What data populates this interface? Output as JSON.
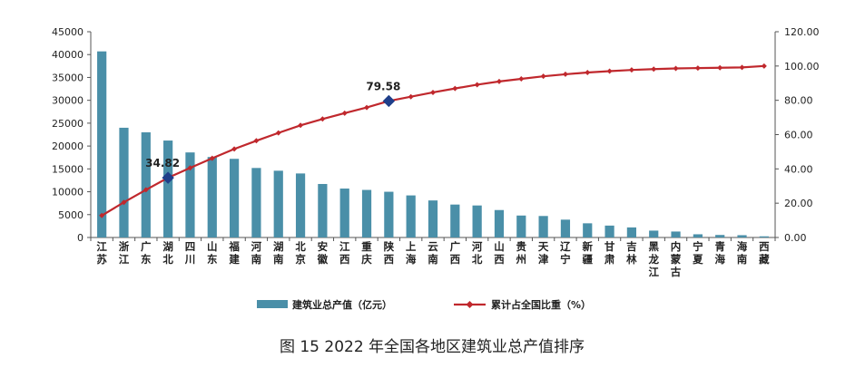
{
  "chart_data": {
    "type": "bar",
    "caption": "图 15  2022 年全国各地区建筑业总产值排序",
    "categories": [
      "江苏",
      "浙江",
      "广东",
      "湖北",
      "四川",
      "山东",
      "福建",
      "河南",
      "湖南",
      "北京",
      "安徽",
      "江西",
      "重庆",
      "陕西",
      "上海",
      "云南",
      "广西",
      "河北",
      "山西",
      "贵州",
      "天津",
      "辽宁",
      "新疆",
      "甘肃",
      "吉林",
      "黑龙江",
      "内蒙古",
      "宁夏",
      "青海",
      "海南",
      "西藏"
    ],
    "y_left": {
      "min": 0,
      "max": 45000,
      "step": 5000,
      "ticks": [
        "0",
        "5000",
        "10000",
        "15000",
        "20000",
        "25000",
        "30000",
        "35000",
        "40000",
        "45000"
      ]
    },
    "y_right": {
      "min": 0,
      "max": 120,
      "step": 20,
      "ticks": [
        "0.00",
        "20.00",
        "40.00",
        "60.00",
        "80.00",
        "100.00",
        "120.00"
      ]
    },
    "series": [
      {
        "name": "建筑业总产值（亿元）",
        "kind": "bar",
        "axis": "left",
        "color": "#4a8fa8",
        "values": [
          40700,
          24000,
          23000,
          21200,
          18600,
          17600,
          17200,
          15200,
          14600,
          14000,
          11700,
          10700,
          10400,
          10000,
          9200,
          8100,
          7200,
          7000,
          6000,
          4800,
          4700,
          3900,
          3100,
          2600,
          2200,
          1500,
          1300,
          700,
          550,
          500,
          250
        ]
      },
      {
        "name": "累计占全国比重（%）",
        "kind": "line",
        "axis": "right",
        "color": "#c0282d",
        "values": [
          12.8,
          20.5,
          27.8,
          34.82,
          40.6,
          46.2,
          51.6,
          56.4,
          61.0,
          65.4,
          69.1,
          72.5,
          75.8,
          79.58,
          82.1,
          84.6,
          86.9,
          89.1,
          91.0,
          92.5,
          94.0,
          95.2,
          96.2,
          97.0,
          97.7,
          98.2,
          98.6,
          98.8,
          99.0,
          99.2,
          100
        ]
      }
    ],
    "annotations": [
      {
        "label": "34.82",
        "index": 3,
        "value": 34.82
      },
      {
        "label": "79.58",
        "index": 13,
        "value": 79.58
      }
    ],
    "legend_position": "bottom",
    "grid": false
  }
}
